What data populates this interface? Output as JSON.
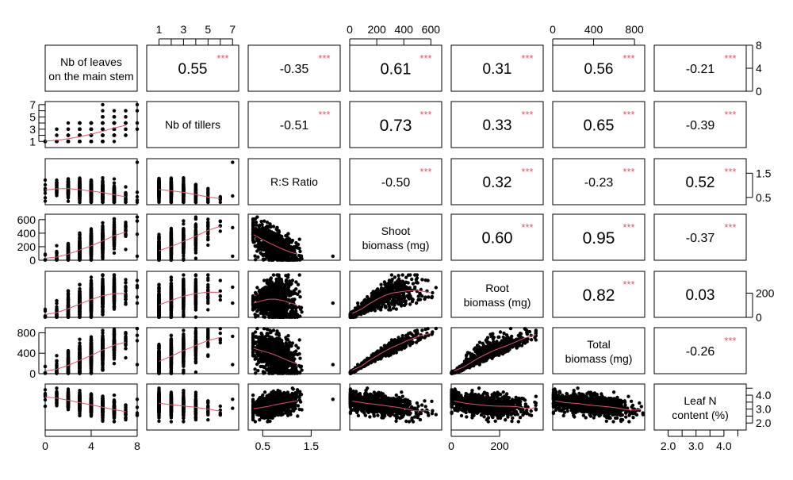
{
  "colors": {
    "stars": "#df536b",
    "smooth": "#df536b",
    "points": "#000000",
    "frame": "#000000"
  },
  "chart_data": {
    "type": "scatter-matrix",
    "variables": [
      {
        "lines": [
          "Nb of leaves",
          "on the main stem"
        ],
        "range": [
          0,
          8
        ],
        "ticks": [
          0,
          4,
          8
        ]
      },
      {
        "lines": [
          "Nb of tillers"
        ],
        "range": [
          0,
          7.5
        ],
        "ticks": [
          1,
          3,
          5,
          7
        ],
        "minor_ticks": [
          2,
          4,
          6
        ]
      },
      {
        "lines": [
          "R:S Ratio"
        ],
        "range": [
          0.2,
          2.1
        ],
        "ticks": [
          0.5,
          1.5
        ]
      },
      {
        "lines": [
          "Shoot",
          "biomass (mg)"
        ],
        "range": [
          0,
          680
        ],
        "ticks": [
          0,
          200,
          400,
          600
        ]
      },
      {
        "lines": [
          "Root",
          "biomass (mg)"
        ],
        "range": [
          0,
          380
        ],
        "ticks": [
          0,
          200
        ]
      },
      {
        "lines": [
          "Total",
          "biomass (mg)"
        ],
        "range": [
          0,
          900
        ],
        "ticks": [
          0,
          400,
          800
        ]
      },
      {
        "lines": [
          "Leaf N",
          "content (%)"
        ],
        "range": [
          1.5,
          4.8
        ],
        "ticks": [
          2.0,
          3.0,
          4.0
        ],
        "minor_ticks": [
          2.5,
          3.5,
          4.5
        ]
      }
    ],
    "correlations": [
      {
        "row": 0,
        "col": 1,
        "r": "0.55",
        "stars": "***",
        "size": 19
      },
      {
        "row": 0,
        "col": 2,
        "r": "-0.35",
        "stars": "***",
        "size": 16
      },
      {
        "row": 0,
        "col": 3,
        "r": "0.61",
        "stars": "***",
        "size": 20
      },
      {
        "row": 0,
        "col": 4,
        "r": "0.31",
        "stars": "***",
        "size": 19
      },
      {
        "row": 0,
        "col": 5,
        "r": "0.56",
        "stars": "***",
        "size": 19
      },
      {
        "row": 0,
        "col": 6,
        "r": "-0.21",
        "stars": "***",
        "size": 16
      },
      {
        "row": 1,
        "col": 2,
        "r": "-0.51",
        "stars": "***",
        "size": 16
      },
      {
        "row": 1,
        "col": 3,
        "r": "0.73",
        "stars": "***",
        "size": 21
      },
      {
        "row": 1,
        "col": 4,
        "r": "0.33",
        "stars": "***",
        "size": 19
      },
      {
        "row": 1,
        "col": 5,
        "r": "0.65",
        "stars": "***",
        "size": 20
      },
      {
        "row": 1,
        "col": 6,
        "r": "-0.39",
        "stars": "***",
        "size": 16
      },
      {
        "row": 2,
        "col": 3,
        "r": "-0.50",
        "stars": "***",
        "size": 16
      },
      {
        "row": 2,
        "col": 4,
        "r": "0.32",
        "stars": "***",
        "size": 19
      },
      {
        "row": 2,
        "col": 5,
        "r": "-0.23",
        "stars": "***",
        "size": 16
      },
      {
        "row": 2,
        "col": 6,
        "r": "0.52",
        "stars": "***",
        "size": 19
      },
      {
        "row": 3,
        "col": 4,
        "r": "0.60",
        "stars": "***",
        "size": 20
      },
      {
        "row": 3,
        "col": 5,
        "r": "0.95",
        "stars": "***",
        "size": 21
      },
      {
        "row": 3,
        "col": 6,
        "r": "-0.37",
        "stars": "***",
        "size": 16
      },
      {
        "row": 4,
        "col": 5,
        "r": "0.82",
        "stars": "***",
        "size": 21
      },
      {
        "row": 4,
        "col": 6,
        "r": "0.03",
        "stars": "",
        "size": 19
      },
      {
        "row": 5,
        "col": 6,
        "r": "-0.26",
        "stars": "***",
        "size": 16
      }
    ]
  }
}
